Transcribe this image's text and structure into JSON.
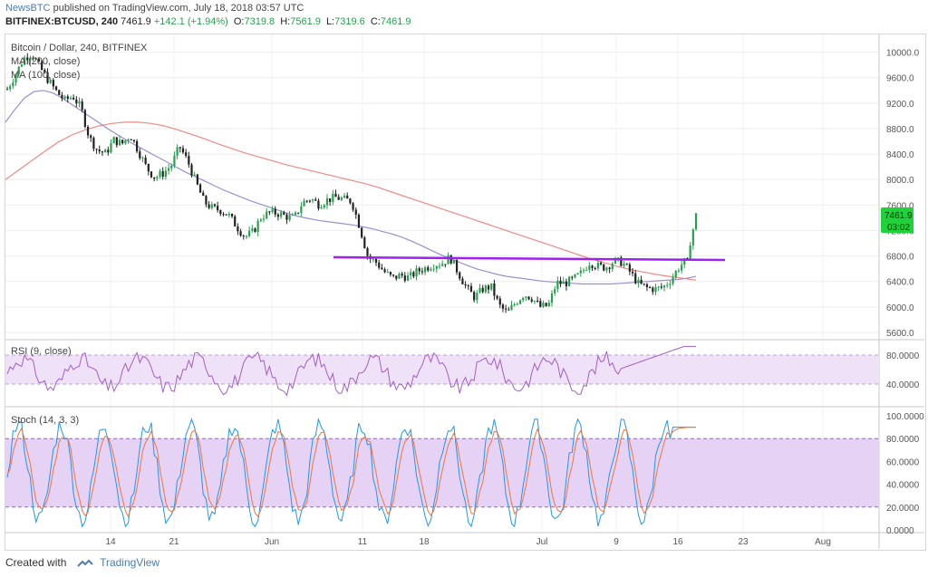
{
  "header": {
    "publisher": "NewsBTC",
    "published_text": "published on TradingView.com, July 18, 2018 03:57 UTC"
  },
  "symbol_line": {
    "symbol": "BITFINEX:BTCUSD, 240",
    "last": "7461.9",
    "change": "+142.1 (+1.94%)",
    "open_label": "O:",
    "open": "7319.8",
    "high_label": "H:",
    "high": "7561.9",
    "low_label": "L:",
    "low": "7319.6",
    "close_label": "C:",
    "close": "7461.9"
  },
  "legend": {
    "title": "Bitcoin / Dollar, 240, BITFINEX",
    "ma200": "MA (200, close)",
    "ma100": "MA (100, close)",
    "rsi": "RSI (9, close)",
    "stoch": "Stoch (14, 3, 3)"
  },
  "price_badge": {
    "value": "7461.9",
    "countdown": "03:02",
    "color": "#1fd13b"
  },
  "footer": {
    "created_with": "Created with",
    "brand": "TradingView"
  },
  "colors": {
    "up": "#26a24e",
    "down": "#222222",
    "ma100": "#9c8fd1",
    "ma200": "#f08a84",
    "resistance": "#a020f0",
    "rsi_line": "#a25fc7",
    "rsi_band": "#efe1f7",
    "stoch_fill": "#e6d2f4",
    "stoch_k": "#2196f3",
    "stoch_d": "#f4743b"
  },
  "chart_data": {
    "type": "line",
    "title": "Bitcoin / Dollar, 240, BITFINEX",
    "price_axis": {
      "ticks": [
        5600,
        6000,
        6400,
        6800,
        7200,
        7600,
        8000,
        8400,
        8800,
        9200,
        9600,
        10000
      ],
      "range": [
        5500,
        10250
      ],
      "tick_labels": [
        "5600.0",
        "6000.0",
        "6400.0",
        "6800.0",
        "7200.0",
        "7600.0",
        "8000.0",
        "8400.0",
        "8800.0",
        "9200.0",
        "9600.0",
        "10000.0"
      ]
    },
    "time_axis": {
      "labels": [
        "14",
        "21",
        "Jun",
        "11",
        "18",
        "Jul",
        "9",
        "16",
        "23",
        "Aug"
      ]
    },
    "price_close": [
      9420,
      9650,
      9900,
      9980,
      9760,
      9560,
      9380,
      9240,
      9310,
      9120,
      8660,
      8460,
      8410,
      8620,
      8560,
      8700,
      8450,
      8180,
      8030,
      8100,
      8220,
      8520,
      8290,
      7960,
      7650,
      7550,
      7520,
      7440,
      7260,
      7100,
      7180,
      7420,
      7480,
      7470,
      7420,
      7390,
      7640,
      7700,
      7610,
      7680,
      7720,
      7690,
      7660,
      7250,
      6780,
      6700,
      6550,
      6450,
      6500,
      6460,
      6560,
      6610,
      6670,
      6680,
      6780,
      6540,
      6300,
      6150,
      6280,
      6320,
      6020,
      5900,
      6070,
      6200,
      6140,
      6000,
      6020,
      6380,
      6370,
      6430,
      6530,
      6700,
      6640,
      6620,
      6720,
      6700,
      6540,
      6360,
      6300,
      6280,
      6310,
      6440,
      6640,
      6750,
      7470
    ],
    "ma100": [
      8900,
      9100,
      9280,
      9380,
      9400,
      9360,
      9280,
      9180,
      9080,
      8980,
      8880,
      8780,
      8690,
      8600,
      8520,
      8440,
      8360,
      8280,
      8200,
      8120,
      8050,
      7980,
      7910,
      7840,
      7780,
      7720,
      7660,
      7610,
      7560,
      7510,
      7460,
      7420,
      7390,
      7360,
      7340,
      7320,
      7300,
      7280,
      7250,
      7220,
      7180,
      7140,
      7090,
      7030,
      6960,
      6890,
      6820,
      6760,
      6700,
      6640,
      6590,
      6550,
      6510,
      6480,
      6460,
      6440,
      6420,
      6400,
      6390,
      6380,
      6370,
      6360,
      6360,
      6360,
      6360,
      6370,
      6380,
      6390,
      6400,
      6410,
      6420,
      6430,
      6450,
      6480
    ],
    "ma200": [
      8000,
      8150,
      8300,
      8450,
      8590,
      8700,
      8780,
      8840,
      8880,
      8900,
      8900,
      8880,
      8840,
      8780,
      8710,
      8640,
      8560,
      8490,
      8420,
      8360,
      8300,
      8240,
      8190,
      8140,
      8090,
      8040,
      7990,
      7940,
      7880,
      7810,
      7740,
      7670,
      7600,
      7530,
      7460,
      7390,
      7320,
      7250,
      7180,
      7110,
      7040,
      6970,
      6900,
      6830,
      6760,
      6700,
      6640,
      6590,
      6550,
      6510,
      6480,
      6450,
      6420
    ],
    "resistance": {
      "y": 6780,
      "x_label_start": "between 4 Jun and 11 Jun",
      "x_label_end": "between 16 and 23"
    },
    "rsi": {
      "levels": [
        40,
        80
      ],
      "tick_labels": [
        "40.0000",
        "80.0000"
      ]
    },
    "stoch": {
      "levels": [
        20,
        80
      ],
      "tick_labels": [
        "0.0000",
        "20.0000",
        "40.0000",
        "60.0000",
        "80.0000",
        "100.0000"
      ]
    }
  }
}
